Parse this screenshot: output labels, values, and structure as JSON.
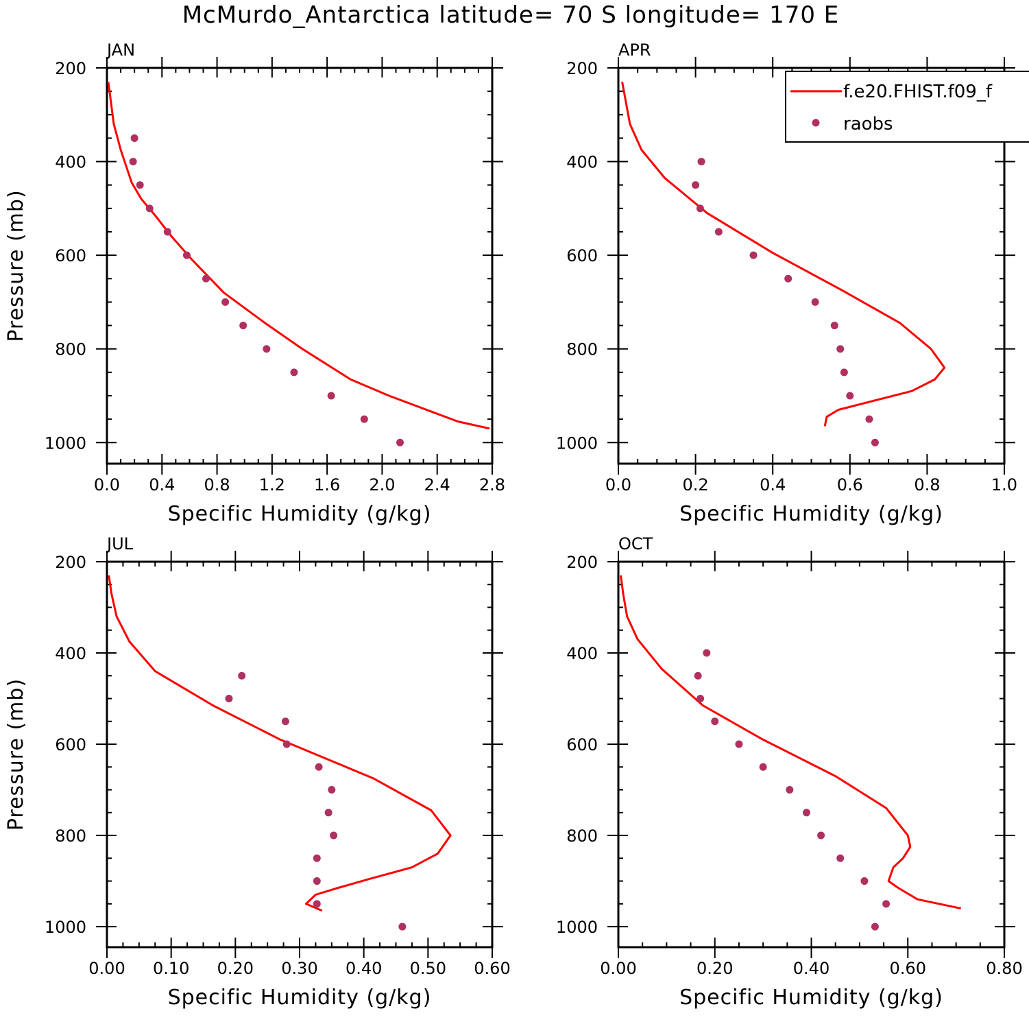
{
  "figure": {
    "title": "McMurdo_Antarctica  latitude= 70 S longitude= 170 E"
  },
  "legend": {
    "entries": [
      {
        "label": "f.e20.FHIST.f09_f",
        "kind": "line",
        "color": "#ff0000"
      },
      {
        "label": "raobs",
        "kind": "marker",
        "color": "#b03060"
      }
    ]
  },
  "chart_data": [
    {
      "type": "line",
      "title": "JAN",
      "xlabel": "Specific Humidity (g/kg)",
      "ylabel": "Pressure (mb)",
      "xlim": [
        0,
        2.8
      ],
      "ylim": [
        1000,
        200
      ],
      "y_reversed": true,
      "xticks": [
        "0.0",
        "0.4",
        "0.8",
        "1.2",
        "1.6",
        "2.0",
        "2.4",
        "2.8"
      ],
      "yticks": [
        "200",
        "400",
        "600",
        "800",
        "1000"
      ],
      "series": [
        {
          "name": "f.e20.FHIST.f09_f",
          "style": "line",
          "color": "#ff0000",
          "x": [
            0.01,
            0.05,
            0.1,
            0.18,
            0.25,
            0.35,
            0.47,
            0.62,
            0.85,
            1.15,
            1.42,
            1.77,
            2.05,
            2.55,
            2.78
          ],
          "y": [
            230,
            320,
            375,
            445,
            480,
            515,
            560,
            610,
            680,
            745,
            800,
            865,
            900,
            955,
            970
          ]
        },
        {
          "name": "raobs",
          "style": "markers",
          "color": "#b03060",
          "x": [
            0.2,
            0.19,
            0.24,
            0.31,
            0.44,
            0.58,
            0.72,
            0.86,
            0.99,
            1.16,
            1.36,
            1.63,
            1.87,
            2.13
          ],
          "y": [
            350,
            400,
            450,
            500,
            550,
            600,
            650,
            700,
            750,
            800,
            850,
            900,
            950,
            1000
          ]
        }
      ]
    },
    {
      "type": "line",
      "title": "APR",
      "xlabel": "Specific Humidity (g/kg)",
      "ylabel": "",
      "xlim": [
        0,
        1.0
      ],
      "ylim": [
        1000,
        200
      ],
      "y_reversed": true,
      "xticks": [
        "0.0",
        "0.2",
        "0.4",
        "0.6",
        "0.8",
        "1.0"
      ],
      "yticks": [
        "200",
        "400",
        "600",
        "800",
        "1000"
      ],
      "series": [
        {
          "name": "f.e20.FHIST.f09_f",
          "style": "line",
          "color": "#ff0000",
          "x": [
            0.01,
            0.03,
            0.06,
            0.12,
            0.23,
            0.4,
            0.58,
            0.73,
            0.81,
            0.845,
            0.82,
            0.76,
            0.57,
            0.54,
            0.535
          ],
          "y": [
            230,
            320,
            375,
            435,
            510,
            595,
            675,
            745,
            800,
            840,
            865,
            890,
            930,
            945,
            965
          ]
        },
        {
          "name": "raobs",
          "style": "markers",
          "color": "#b03060",
          "x": [
            0.215,
            0.2,
            0.212,
            0.26,
            0.35,
            0.44,
            0.51,
            0.56,
            0.575,
            0.585,
            0.6,
            0.65,
            0.665
          ],
          "y": [
            400,
            450,
            500,
            550,
            600,
            650,
            700,
            750,
            800,
            850,
            900,
            950,
            1000
          ]
        }
      ]
    },
    {
      "type": "line",
      "title": "JUL",
      "xlabel": "Specific Humidity (g/kg)",
      "ylabel": "Pressure (mb)",
      "xlim": [
        0,
        0.6
      ],
      "ylim": [
        1000,
        200
      ],
      "y_reversed": true,
      "xticks": [
        "0.00",
        "0.10",
        "0.20",
        "0.30",
        "0.40",
        "0.50",
        "0.60"
      ],
      "yticks": [
        "200",
        "400",
        "600",
        "800",
        "1000"
      ],
      "series": [
        {
          "name": "f.e20.FHIST.f09_f",
          "style": "line",
          "color": "#ff0000",
          "x": [
            0.003,
            0.007,
            0.015,
            0.035,
            0.075,
            0.165,
            0.27,
            0.415,
            0.505,
            0.535,
            0.515,
            0.475,
            0.41,
            0.36,
            0.325,
            0.31,
            0.335
          ],
          "y": [
            230,
            270,
            320,
            375,
            440,
            515,
            590,
            675,
            745,
            800,
            840,
            870,
            895,
            915,
            930,
            950,
            965
          ]
        },
        {
          "name": "raobs",
          "style": "markers",
          "color": "#b03060",
          "x": [
            0.21,
            0.19,
            0.278,
            0.28,
            0.33,
            0.35,
            0.345,
            0.353,
            0.327,
            0.327,
            0.327,
            0.46
          ],
          "y": [
            450,
            500,
            550,
            600,
            650,
            700,
            750,
            800,
            850,
            900,
            950,
            1000
          ]
        }
      ]
    },
    {
      "type": "line",
      "title": "OCT",
      "xlabel": "Specific Humidity (g/kg)",
      "ylabel": "",
      "xlim": [
        0,
        0.8
      ],
      "ylim": [
        1000,
        200
      ],
      "y_reversed": true,
      "xticks": [
        "0.00",
        "0.20",
        "0.40",
        "0.60",
        "0.80"
      ],
      "yticks": [
        "200",
        "400",
        "600",
        "800",
        "1000"
      ],
      "series": [
        {
          "name": "f.e20.FHIST.f09_f",
          "style": "line",
          "color": "#ff0000",
          "x": [
            0.005,
            0.01,
            0.018,
            0.04,
            0.09,
            0.175,
            0.3,
            0.45,
            0.555,
            0.6,
            0.605,
            0.59,
            0.57,
            0.56,
            0.58,
            0.62,
            0.71
          ],
          "y": [
            230,
            270,
            320,
            370,
            435,
            515,
            590,
            670,
            740,
            800,
            825,
            850,
            870,
            900,
            915,
            940,
            960
          ]
        },
        {
          "name": "raobs",
          "style": "markers",
          "color": "#b03060",
          "x": [
            0.183,
            0.165,
            0.17,
            0.2,
            0.25,
            0.3,
            0.355,
            0.39,
            0.42,
            0.46,
            0.51,
            0.555,
            0.532
          ],
          "y": [
            400,
            450,
            500,
            550,
            600,
            650,
            700,
            750,
            800,
            850,
            900,
            950,
            1000
          ]
        }
      ]
    }
  ]
}
